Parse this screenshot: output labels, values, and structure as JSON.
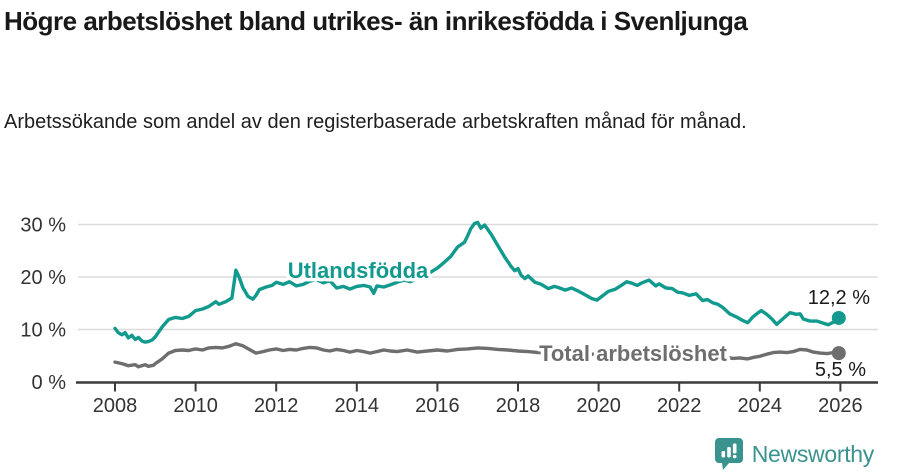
{
  "header": {
    "title": "Högre arbetslöshet bland utrikes- än inrikesfödda i Svenljunga",
    "subtitle": "Arbetssökande som andel av den registerbaserade arbetskraften månad för månad."
  },
  "branding": {
    "name": "Newsworthy",
    "icon": "newsworthy-chart-bubble-icon",
    "color": "#3A938F"
  },
  "chart_data": {
    "type": "line",
    "title": "Högre arbetslöshet bland utrikes- än inrikesfödda i Svenljunga",
    "subtitle": "Arbetssökande som andel av den registerbaserade arbetskraften månad för månad.",
    "grid": "horizontal",
    "legend": "inline-labels",
    "xlim": [
      2007.05,
      2026.9
    ],
    "ylim": [
      0,
      32
    ],
    "x_ticks": [
      {
        "label": "2008",
        "value": 2008
      },
      {
        "label": "2010",
        "value": 2010
      },
      {
        "label": "2012",
        "value": 2012
      },
      {
        "label": "2014",
        "value": 2014
      },
      {
        "label": "2016",
        "value": 2016
      },
      {
        "label": "2018",
        "value": 2018
      },
      {
        "label": "2020",
        "value": 2020
      },
      {
        "label": "2022",
        "value": 2022
      },
      {
        "label": "2024",
        "value": 2024
      },
      {
        "label": "2026",
        "value": 2026
      }
    ],
    "y_ticks": [
      {
        "label": "0 %",
        "value": 0
      },
      {
        "label": "10 %",
        "value": 10
      },
      {
        "label": "20 %",
        "value": 20
      },
      {
        "label": "30 %",
        "value": 30
      }
    ],
    "series": [
      {
        "name": "Utlandsfödda",
        "color": "#119A8D",
        "end_label": "12,2 %",
        "end_value": 12.2,
        "points": [
          [
            2008.0,
            10.2
          ],
          [
            2008.08,
            9.4
          ],
          [
            2008.17,
            9.0
          ],
          [
            2008.25,
            9.4
          ],
          [
            2008.33,
            8.4
          ],
          [
            2008.42,
            8.9
          ],
          [
            2008.5,
            8.1
          ],
          [
            2008.58,
            8.5
          ],
          [
            2008.67,
            7.8
          ],
          [
            2008.75,
            7.6
          ],
          [
            2008.83,
            7.7
          ],
          [
            2008.92,
            8.0
          ],
          [
            2009.0,
            8.6
          ],
          [
            2009.17,
            10.5
          ],
          [
            2009.33,
            11.9
          ],
          [
            2009.5,
            12.3
          ],
          [
            2009.67,
            12.1
          ],
          [
            2009.83,
            12.5
          ],
          [
            2010.0,
            13.6
          ],
          [
            2010.17,
            13.9
          ],
          [
            2010.33,
            14.4
          ],
          [
            2010.5,
            15.3
          ],
          [
            2010.58,
            14.8
          ],
          [
            2010.75,
            15.3
          ],
          [
            2010.9,
            16.0
          ],
          [
            2011.0,
            21.3
          ],
          [
            2011.08,
            20.0
          ],
          [
            2011.17,
            18.0
          ],
          [
            2011.3,
            16.3
          ],
          [
            2011.42,
            15.8
          ],
          [
            2011.5,
            16.5
          ],
          [
            2011.58,
            17.6
          ],
          [
            2011.75,
            18.1
          ],
          [
            2011.9,
            18.4
          ],
          [
            2012.0,
            19.0
          ],
          [
            2012.17,
            18.6
          ],
          [
            2012.33,
            19.1
          ],
          [
            2012.5,
            18.3
          ],
          [
            2012.67,
            18.6
          ],
          [
            2012.83,
            19.2
          ],
          [
            2013.0,
            19.5
          ],
          [
            2013.17,
            18.9
          ],
          [
            2013.33,
            19.3
          ],
          [
            2013.5,
            17.9
          ],
          [
            2013.67,
            18.2
          ],
          [
            2013.83,
            17.7
          ],
          [
            2014.0,
            18.2
          ],
          [
            2014.17,
            18.4
          ],
          [
            2014.33,
            18.1
          ],
          [
            2014.42,
            16.9
          ],
          [
            2014.5,
            18.3
          ],
          [
            2014.67,
            18.1
          ],
          [
            2014.83,
            18.5
          ],
          [
            2015.0,
            19.0
          ],
          [
            2015.17,
            19.4
          ],
          [
            2015.33,
            19.1
          ],
          [
            2015.5,
            19.7
          ],
          [
            2015.67,
            20.2
          ],
          [
            2015.83,
            20.9
          ],
          [
            2016.0,
            21.7
          ],
          [
            2016.17,
            22.8
          ],
          [
            2016.33,
            23.9
          ],
          [
            2016.5,
            25.7
          ],
          [
            2016.67,
            26.6
          ],
          [
            2016.75,
            27.8
          ],
          [
            2016.83,
            29.2
          ],
          [
            2016.92,
            30.2
          ],
          [
            2017.0,
            30.4
          ],
          [
            2017.08,
            29.3
          ],
          [
            2017.17,
            29.9
          ],
          [
            2017.33,
            28.2
          ],
          [
            2017.5,
            26.0
          ],
          [
            2017.67,
            23.8
          ],
          [
            2017.83,
            22.0
          ],
          [
            2017.92,
            21.2
          ],
          [
            2018.0,
            21.6
          ],
          [
            2018.08,
            20.3
          ],
          [
            2018.17,
            19.7
          ],
          [
            2018.25,
            20.2
          ],
          [
            2018.42,
            19.0
          ],
          [
            2018.58,
            18.6
          ],
          [
            2018.75,
            17.8
          ],
          [
            2018.9,
            18.2
          ],
          [
            2019.0,
            18.0
          ],
          [
            2019.17,
            17.5
          ],
          [
            2019.33,
            17.9
          ],
          [
            2019.5,
            17.3
          ],
          [
            2019.67,
            16.6
          ],
          [
            2019.83,
            15.9
          ],
          [
            2019.96,
            15.6
          ],
          [
            2020.08,
            16.3
          ],
          [
            2020.25,
            17.3
          ],
          [
            2020.42,
            17.7
          ],
          [
            2020.58,
            18.5
          ],
          [
            2020.7,
            19.1
          ],
          [
            2020.83,
            18.8
          ],
          [
            2020.96,
            18.4
          ],
          [
            2021.08,
            18.9
          ],
          [
            2021.25,
            19.4
          ],
          [
            2021.42,
            18.3
          ],
          [
            2021.5,
            18.7
          ],
          [
            2021.67,
            17.9
          ],
          [
            2021.83,
            17.8
          ],
          [
            2021.96,
            17.1
          ],
          [
            2022.08,
            17.0
          ],
          [
            2022.25,
            16.5
          ],
          [
            2022.42,
            16.8
          ],
          [
            2022.58,
            15.5
          ],
          [
            2022.7,
            15.7
          ],
          [
            2022.83,
            15.1
          ],
          [
            2022.96,
            14.8
          ],
          [
            2023.08,
            14.2
          ],
          [
            2023.25,
            13.0
          ],
          [
            2023.42,
            12.4
          ],
          [
            2023.58,
            11.7
          ],
          [
            2023.7,
            11.3
          ],
          [
            2023.83,
            12.4
          ],
          [
            2023.96,
            13.2
          ],
          [
            2024.04,
            13.6
          ],
          [
            2024.17,
            12.9
          ],
          [
            2024.3,
            12.0
          ],
          [
            2024.42,
            11.0
          ],
          [
            2024.58,
            12.1
          ],
          [
            2024.75,
            13.2
          ],
          [
            2024.9,
            12.9
          ],
          [
            2025.0,
            13.0
          ],
          [
            2025.08,
            12.0
          ],
          [
            2025.25,
            11.6
          ],
          [
            2025.42,
            11.6
          ],
          [
            2025.58,
            11.2
          ],
          [
            2025.7,
            10.9
          ],
          [
            2025.83,
            11.4
          ],
          [
            2025.96,
            12.2
          ]
        ]
      },
      {
        "name": "Total arbetslöshet",
        "color": "#6E6E6E",
        "end_label": "5,5 %",
        "end_value": 5.5,
        "points": [
          [
            2008.0,
            3.8
          ],
          [
            2008.17,
            3.5
          ],
          [
            2008.33,
            3.1
          ],
          [
            2008.5,
            3.3
          ],
          [
            2008.58,
            2.9
          ],
          [
            2008.75,
            3.3
          ],
          [
            2008.83,
            3.0
          ],
          [
            2008.96,
            3.2
          ],
          [
            2009.0,
            3.5
          ],
          [
            2009.17,
            4.4
          ],
          [
            2009.33,
            5.5
          ],
          [
            2009.5,
            6.0
          ],
          [
            2009.67,
            6.1
          ],
          [
            2009.83,
            6.0
          ],
          [
            2010.0,
            6.3
          ],
          [
            2010.17,
            6.1
          ],
          [
            2010.33,
            6.5
          ],
          [
            2010.5,
            6.6
          ],
          [
            2010.67,
            6.5
          ],
          [
            2010.83,
            6.8
          ],
          [
            2011.0,
            7.3
          ],
          [
            2011.17,
            6.9
          ],
          [
            2011.33,
            6.2
          ],
          [
            2011.5,
            5.5
          ],
          [
            2011.67,
            5.8
          ],
          [
            2011.83,
            6.1
          ],
          [
            2012.0,
            6.3
          ],
          [
            2012.17,
            6.0
          ],
          [
            2012.33,
            6.2
          ],
          [
            2012.5,
            6.1
          ],
          [
            2012.67,
            6.4
          ],
          [
            2012.83,
            6.6
          ],
          [
            2013.0,
            6.5
          ],
          [
            2013.17,
            6.1
          ],
          [
            2013.33,
            5.9
          ],
          [
            2013.5,
            6.2
          ],
          [
            2013.67,
            6.0
          ],
          [
            2013.83,
            5.7
          ],
          [
            2014.0,
            6.0
          ],
          [
            2014.17,
            5.8
          ],
          [
            2014.33,
            5.5
          ],
          [
            2014.5,
            5.8
          ],
          [
            2014.67,
            6.1
          ],
          [
            2014.83,
            5.9
          ],
          [
            2015.0,
            5.8
          ],
          [
            2015.25,
            6.1
          ],
          [
            2015.5,
            5.7
          ],
          [
            2015.75,
            5.9
          ],
          [
            2016.0,
            6.1
          ],
          [
            2016.25,
            5.9
          ],
          [
            2016.5,
            6.2
          ],
          [
            2016.75,
            6.3
          ],
          [
            2017.0,
            6.5
          ],
          [
            2017.25,
            6.4
          ],
          [
            2017.5,
            6.2
          ],
          [
            2017.75,
            6.1
          ],
          [
            2018.0,
            5.9
          ],
          [
            2018.25,
            5.8
          ],
          [
            2018.5,
            5.6
          ],
          [
            2018.75,
            5.5
          ],
          [
            2019.0,
            5.6
          ],
          [
            2019.25,
            5.5
          ],
          [
            2019.5,
            5.3
          ],
          [
            2019.75,
            5.2
          ],
          [
            2020.0,
            5.4
          ],
          [
            2020.25,
            5.7
          ],
          [
            2020.5,
            6.0
          ],
          [
            2020.75,
            5.8
          ],
          [
            2021.0,
            5.7
          ],
          [
            2021.25,
            5.9
          ],
          [
            2021.5,
            5.6
          ],
          [
            2021.75,
            5.4
          ],
          [
            2022.0,
            5.3
          ],
          [
            2022.17,
            5.1
          ],
          [
            2022.33,
            5.3
          ],
          [
            2022.5,
            5.0
          ],
          [
            2022.67,
            5.2
          ],
          [
            2022.83,
            4.9
          ],
          [
            2023.0,
            5.0
          ],
          [
            2023.17,
            4.7
          ],
          [
            2023.33,
            4.5
          ],
          [
            2023.5,
            4.6
          ],
          [
            2023.7,
            4.4
          ],
          [
            2023.85,
            4.7
          ],
          [
            2024.0,
            4.9
          ],
          [
            2024.17,
            5.3
          ],
          [
            2024.33,
            5.6
          ],
          [
            2024.5,
            5.7
          ],
          [
            2024.67,
            5.6
          ],
          [
            2024.83,
            5.8
          ],
          [
            2025.0,
            6.2
          ],
          [
            2025.17,
            6.1
          ],
          [
            2025.33,
            5.7
          ],
          [
            2025.5,
            5.5
          ],
          [
            2025.67,
            5.4
          ],
          [
            2025.83,
            5.6
          ],
          [
            2025.96,
            5.5
          ]
        ]
      }
    ]
  }
}
